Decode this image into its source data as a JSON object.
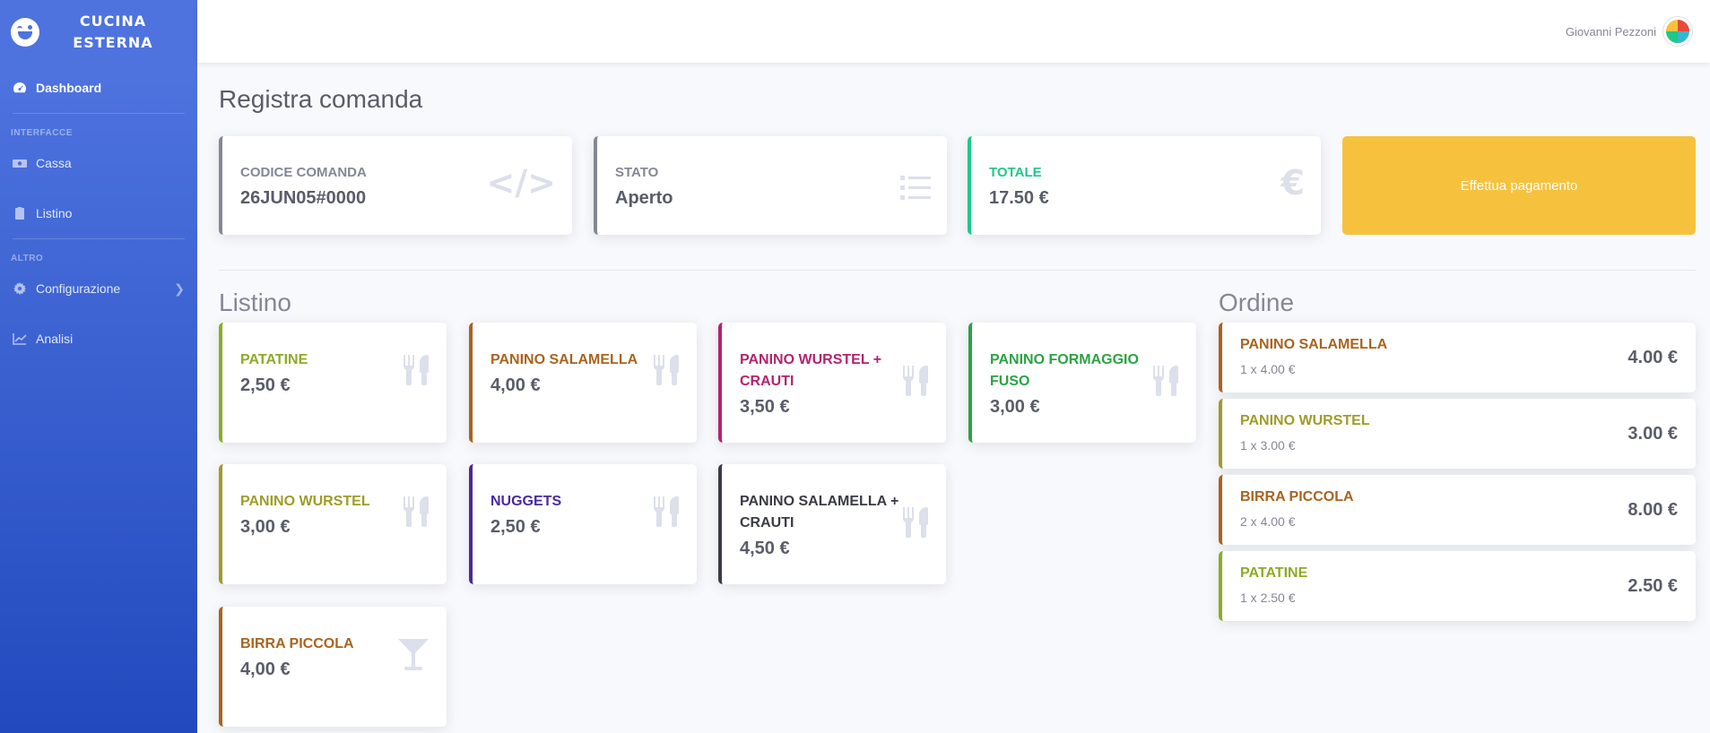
{
  "brand": {
    "line1": "CUCINA",
    "line2": "ESTERNA",
    "icon": "wink-face-icon"
  },
  "sidebar": {
    "dashboard": "Dashboard",
    "heading_interface": "INTERFACCE",
    "cassa": "Cassa",
    "listino": "Listino",
    "heading_other": "ALTRO",
    "configurazione": "Configurazione",
    "analisi": "Analisi"
  },
  "topbar": {
    "user_name": "Giovanni Pezzoni"
  },
  "page": {
    "title": "Registra comanda"
  },
  "summary": {
    "code_label": "CODICE COMANDA",
    "code_value": "26JUN05#0000",
    "code_icon": "</>",
    "status_label": "STATO",
    "status_value": "Aperto",
    "total_label": "TOTALE",
    "total_value": "17.50 €",
    "total_icon": "€",
    "pay_button": "Effettua pagamento"
  },
  "listino": {
    "title": "Listino",
    "items": [
      {
        "name": "PATATINE",
        "price": "2,50 €",
        "color": "#8dab27",
        "icon": "utensils-icon"
      },
      {
        "name": "PANINO SALAMELLA",
        "price": "4,00 €",
        "color": "#a8641f",
        "icon": "utensils-icon"
      },
      {
        "name": "PANINO WURSTEL + CRAUTI",
        "price": "3,50 €",
        "color": "#b3246e",
        "icon": "utensils-icon"
      },
      {
        "name": "PANINO FORMAGGIO FUSO",
        "price": "3,00 €",
        "color": "#2ba343",
        "icon": "utensils-icon"
      },
      {
        "name": "PANINO WURSTEL",
        "price": "3,00 €",
        "color": "#a09b2a",
        "icon": "utensils-icon"
      },
      {
        "name": "NUGGETS",
        "price": "2,50 €",
        "color": "#4a2a9c",
        "icon": "utensils-icon"
      },
      {
        "name": "PANINO SALAMELLA + CRAUTI",
        "price": "4,50 €",
        "color": "#3a3b45",
        "icon": "utensils-icon"
      },
      {
        "name": "BIRRA PICCOLA",
        "price": "4,00 €",
        "color": "#a8641f",
        "icon": "cocktail-glass-icon"
      }
    ]
  },
  "ordine": {
    "title": "Ordine",
    "items": [
      {
        "name": "PANINO SALAMELLA",
        "qty": "1 x 4.00 €",
        "total": "4.00 €",
        "color": "#a8641f"
      },
      {
        "name": "PANINO WURSTEL",
        "qty": "1 x 3.00 €",
        "total": "3.00 €",
        "color": "#a09b2a"
      },
      {
        "name": "BIRRA PICCOLA",
        "qty": "2 x 4.00 €",
        "total": "8.00 €",
        "color": "#a8641f"
      },
      {
        "name": "PATATINE",
        "qty": "1 x 2.50 €",
        "total": "2.50 €",
        "color": "#8dab27"
      }
    ]
  }
}
